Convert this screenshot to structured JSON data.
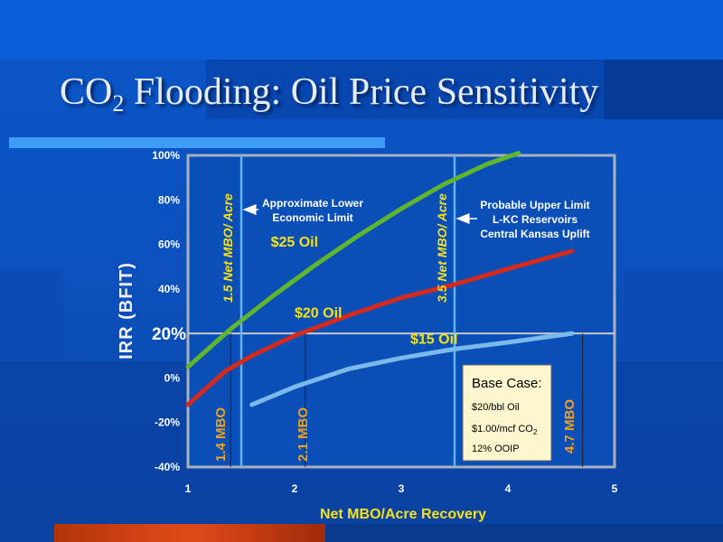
{
  "slide": {
    "title_main": "CO",
    "title_sub": "2",
    "title_rest": " Flooding: Oil Price Sensitivity"
  },
  "chart_data": {
    "type": "line",
    "xlabel": "Net MBO/Acre Recovery",
    "ylabel": "IRR (BFIT)",
    "xlim": [
      1,
      5
    ],
    "ylim": [
      -40,
      100
    ],
    "x_ticks": [
      "1",
      "2",
      "3",
      "4",
      "5"
    ],
    "y_ticks": [
      "100%",
      "80%",
      "60%",
      "40%",
      "20%",
      "0%",
      "-20%",
      "-40%"
    ],
    "highlight_ytick": "20%",
    "series": [
      {
        "name": "$25 Oil",
        "color": "#5fb52c",
        "x": [
          1,
          1.4,
          1.8,
          2.2,
          2.6,
          3.0,
          3.4,
          3.8,
          4.1
        ],
        "y": [
          5,
          22,
          37,
          51,
          64,
          76,
          87,
          96,
          101
        ]
      },
      {
        "name": "$20 Oil",
        "color": "#d42a1c",
        "x": [
          1,
          1.35,
          1.6,
          2.0,
          2.5,
          3.0,
          3.5,
          4.0,
          4.6
        ],
        "y": [
          -12,
          3,
          10,
          19,
          28,
          36,
          42,
          49,
          57
        ]
      },
      {
        "name": "$15 Oil",
        "color": "#7ab9ea",
        "x": [
          1.6,
          2.0,
          2.5,
          3.0,
          3.5,
          4.0,
          4.6
        ],
        "y": [
          -12,
          -4,
          4,
          9,
          13,
          16,
          20
        ]
      }
    ],
    "vertical_lines": [
      {
        "x": 1.5,
        "label": "1.5 Net MBO/ Acre",
        "color": "#63b3ff"
      },
      {
        "x": 3.5,
        "label": "3.5 Net MBO/ Acre",
        "color": "#63b3ff"
      }
    ],
    "drop_lines": [
      {
        "x": 1.4,
        "label": "1.4 MBO"
      },
      {
        "x": 2.1,
        "label": "2.1  MBO"
      },
      {
        "x": 4.7,
        "label": "4.7 MBO"
      }
    ],
    "reference_line_y": 20,
    "annotations": [
      {
        "lines": [
          "Approximate Lower",
          "Economic Limit"
        ],
        "arrow_to_x": 1.5
      },
      {
        "lines": [
          "Probable Upper Limit",
          "L-KC Reservoirs",
          "Central Kansas Uplift"
        ],
        "arrow_to_x": 3.5
      }
    ],
    "base_case": {
      "title": "Base Case:",
      "line1": "$20/bbl Oil",
      "line2_main": "$1.00/mcf CO",
      "line2_sub": "2",
      "line3": "12% OOIP"
    },
    "grid": false,
    "legend": "inline labels"
  }
}
